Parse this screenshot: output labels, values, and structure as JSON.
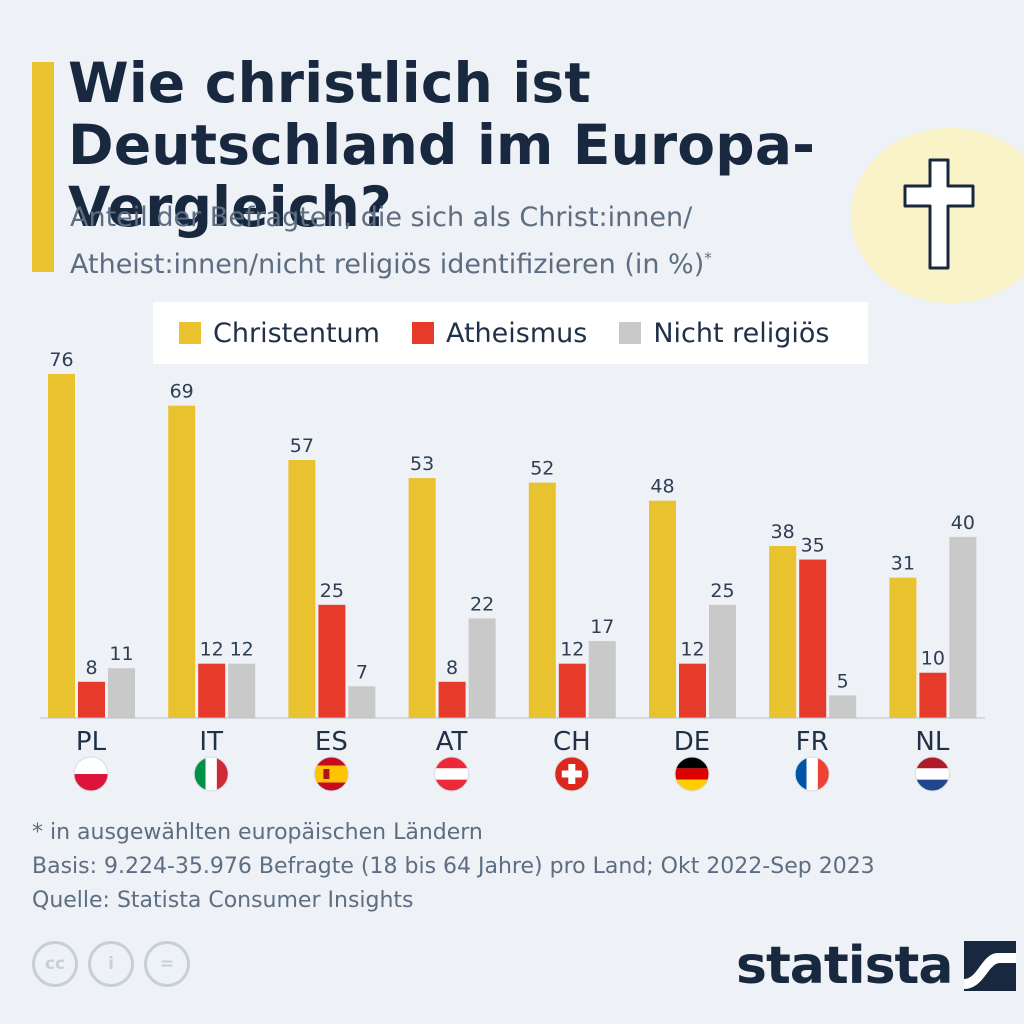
{
  "title": "Wie christlich ist Deutschland im Europa-Vergleich?",
  "subtitle_line1": "Anteil der Befragten, die sich als Christ:innen/",
  "subtitle_line2": "Atheist:innen/nicht religiös identifizieren (in %)",
  "subtitle_mark": "*",
  "colors": {
    "christentum": "#e8c22f",
    "atheismus": "#e63a2b",
    "nicht_religioes": "#c9c9c9"
  },
  "chart_data": {
    "type": "bar",
    "categories": [
      "PL",
      "IT",
      "ES",
      "AT",
      "CH",
      "DE",
      "FR",
      "NL"
    ],
    "series": [
      {
        "name": "Christentum",
        "values": [
          76,
          69,
          57,
          53,
          52,
          48,
          38,
          31
        ]
      },
      {
        "name": "Atheismus",
        "values": [
          8,
          12,
          25,
          8,
          12,
          12,
          35,
          10
        ]
      },
      {
        "name": "Nicht religiös",
        "values": [
          11,
          12,
          7,
          22,
          17,
          25,
          5,
          40
        ]
      }
    ],
    "ylim": [
      0,
      76
    ],
    "legend_position": "top"
  },
  "flag_icons": [
    "poland-flag-icon",
    "italy-flag-icon",
    "spain-flag-icon",
    "austria-flag-icon",
    "switzerland-flag-icon",
    "germany-flag-icon",
    "france-flag-icon",
    "netherlands-flag-icon"
  ],
  "footnotes": {
    "note": "* in ausgewählten europäischen Ländern",
    "basis": "Basis: 9.224-35.976 Befragte (18 bis 64 Jahre) pro Land; Okt 2022-Sep 2023",
    "source": "Quelle: Statista Consumer Insights"
  },
  "license_icons": {
    "cc": "cc",
    "by": "i",
    "nd": "="
  },
  "brand": "statista"
}
